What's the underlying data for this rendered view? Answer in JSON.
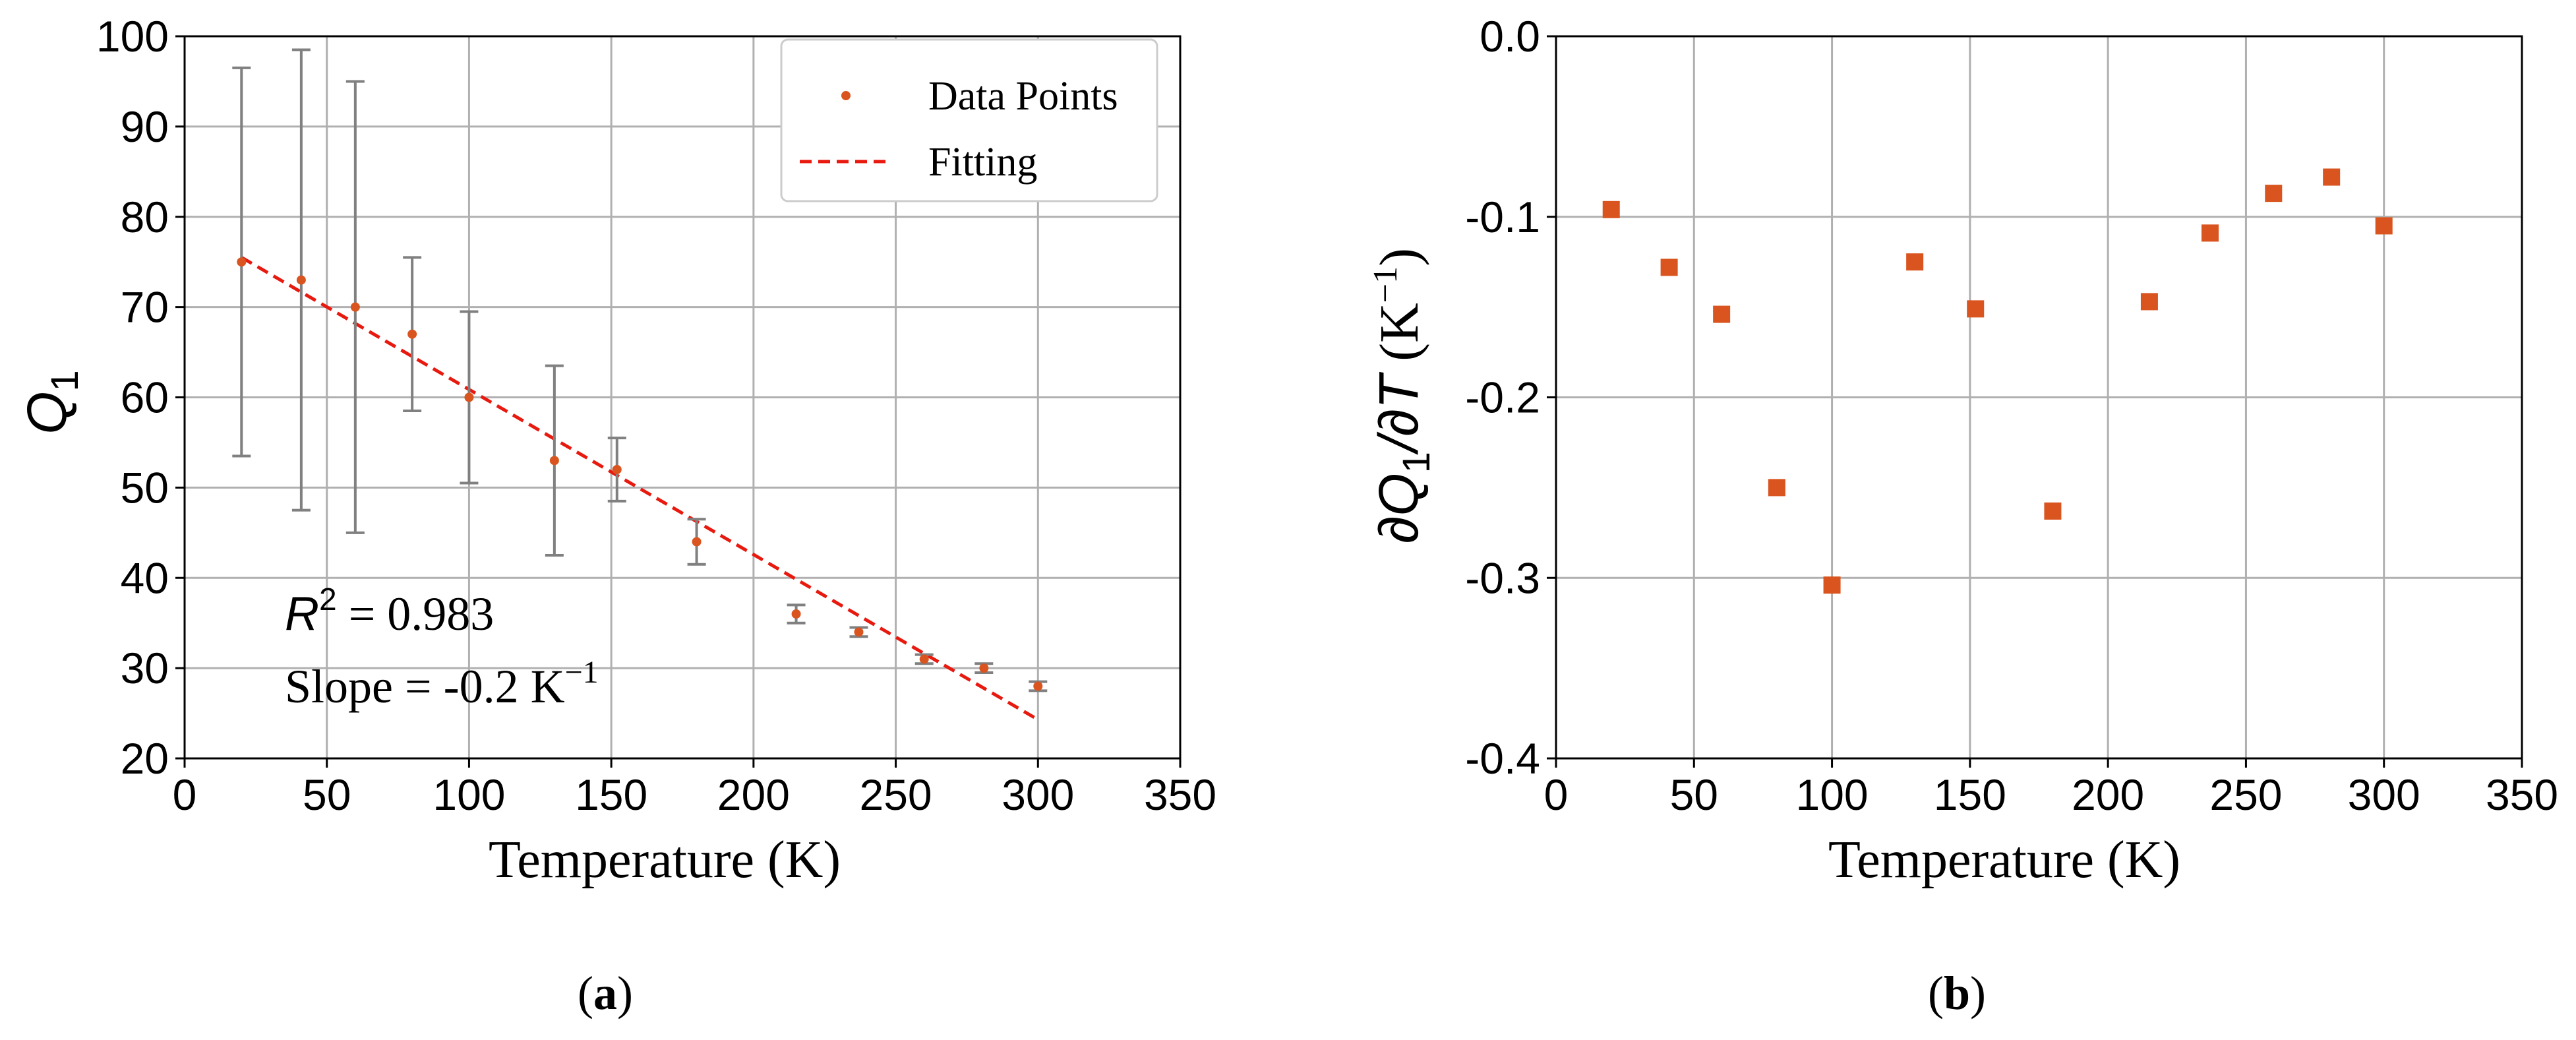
{
  "colors": {
    "points": "#d9541e",
    "fit": "#e8190f",
    "errorbar": "#808080",
    "grid": "#b0b0b0"
  },
  "chart_data": [
    {
      "panel": "(a)",
      "type": "scatter",
      "xlabel": "Temperature (K)",
      "ylabel": "Q",
      "ylabel_sub": "1",
      "xlim": [
        0,
        350
      ],
      "ylim": [
        20,
        100
      ],
      "xticks": [
        0,
        50,
        100,
        150,
        200,
        250,
        300,
        350
      ],
      "yticks": [
        20,
        30,
        40,
        50,
        60,
        70,
        80,
        90,
        100
      ],
      "grid": true,
      "legend": {
        "location": "top-right",
        "entries": [
          "Data Points",
          "Fitting"
        ]
      },
      "series": [
        {
          "name": "Data Points",
          "x": [
            20,
            41,
            60,
            80,
            100,
            130,
            152,
            180,
            215,
            237,
            260,
            281,
            300
          ],
          "y": [
            75,
            73,
            70,
            67,
            60,
            53,
            52,
            44,
            36,
            34,
            31,
            30,
            28
          ],
          "yerr_low": [
            53.5,
            47.5,
            45,
            58.5,
            50.5,
            42.5,
            48.5,
            41.5,
            35,
            33.5,
            30.5,
            29.5,
            27.5
          ],
          "yerr_high": [
            96.5,
            98.5,
            95,
            75.5,
            69.5,
            63.5,
            55.5,
            46.5,
            37,
            34.5,
            31.5,
            30.5,
            28.5
          ]
        },
        {
          "name": "Fitting",
          "x": [
            20,
            300
          ],
          "y": [
            75.5,
            24.3
          ]
        }
      ],
      "annotations": {
        "r2_label": "R",
        "r2_sup": "2",
        "r2_value": " = 0.983",
        "slope_text": "Slope = -0.2 K",
        "slope_sup": "−1"
      }
    },
    {
      "panel": "(b)",
      "type": "scatter",
      "xlabel": "Temperature (K)",
      "ylabel": "∂Q₁/∂T (K⁻¹)",
      "ylabel_parts": {
        "num": "∂Q",
        "num_sub": "1",
        "den": "/∂T",
        "unit": " (K",
        "unit_sup": "−1",
        "unit_close": ")"
      },
      "xlim": [
        0,
        350
      ],
      "ylim": [
        -0.4,
        0.0
      ],
      "xticks": [
        0,
        50,
        100,
        150,
        200,
        250,
        300,
        350
      ],
      "yticks": [
        "0.0",
        "-0.1",
        "-0.2",
        "-0.3",
        "-0.4"
      ],
      "ytick_values": [
        0.0,
        -0.1,
        -0.2,
        -0.3,
        -0.4
      ],
      "grid": true,
      "series": [
        {
          "x": [
            20,
            41,
            60,
            80,
            100,
            130,
            152,
            180,
            215,
            237,
            260,
            281,
            300
          ],
          "y": [
            -0.096,
            -0.128,
            -0.154,
            -0.25,
            -0.304,
            -0.125,
            -0.151,
            -0.263,
            -0.147,
            -0.109,
            -0.087,
            -0.078,
            -0.105
          ]
        }
      ]
    }
  ]
}
